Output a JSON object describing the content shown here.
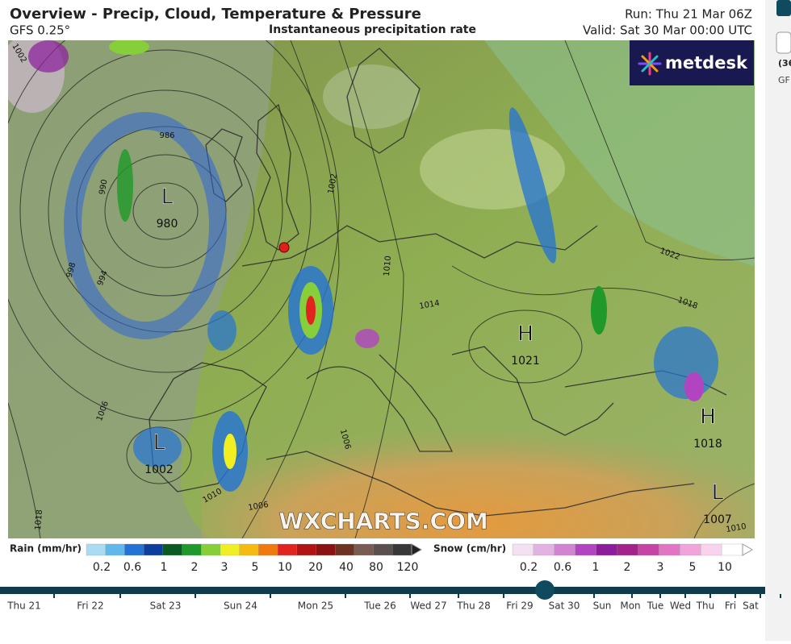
{
  "header": {
    "title": "Overview - Precip, Cloud, Temperature & Pressure",
    "model": "GFS 0.25°",
    "subtitle": "Instantaneous precipitation rate",
    "run": "Run: Thu 21 Mar 06Z",
    "valid": "Valid: Sat 30 Mar 00:00 UTC"
  },
  "logo": "metdesk",
  "watermark": "WXCHARTS.COM",
  "pressure_centers": [
    {
      "label": "L",
      "value": "980"
    },
    {
      "label": "L",
      "value": "1002"
    },
    {
      "label": "H",
      "value": "1021"
    },
    {
      "label": "H",
      "value": "1018"
    },
    {
      "label": "L",
      "value": "1007"
    }
  ],
  "isobar_labels": [
    "1002",
    "986",
    "990",
    "994",
    "998",
    "1002",
    "1006",
    "1010",
    "1014",
    "1018",
    "1022",
    "1006",
    "1010",
    "1006",
    "1018",
    "1010"
  ],
  "rain_legend": {
    "title": "Rain (mm/hr)",
    "labels": [
      "0.2",
      "0.6",
      "1",
      "2",
      "3",
      "5",
      "10",
      "20",
      "40",
      "80",
      "120"
    ],
    "colors": [
      "#a9dcf2",
      "#5fb8ec",
      "#2373d6",
      "#0c3e9e",
      "#0b5a22",
      "#1f9a2a",
      "#86cf3a",
      "#f1ef22",
      "#f6bb10",
      "#f17a10",
      "#e12420",
      "#b21414",
      "#8a1212",
      "#6c3222",
      "#7b5c52",
      "#5b5050",
      "#383838"
    ]
  },
  "snow_legend": {
    "title": "Snow (cm/hr)",
    "labels": [
      "0.2",
      "0.6",
      "1",
      "2",
      "3",
      "5",
      "10"
    ],
    "colors": [
      "#f3e1f1",
      "#e2b3e2",
      "#d283d2",
      "#b244c2",
      "#8c1c9c",
      "#a3238a",
      "#c544a6",
      "#e274c4",
      "#f1a4da",
      "#f9d3ee",
      "#ffffff"
    ]
  },
  "timeline": {
    "days": [
      "Thu 21",
      "Fri 22",
      "Sat 23",
      "Sun 24",
      "Mon 25",
      "Tue 26",
      "Wed 27",
      "Thu 28",
      "Fri 29",
      "Sat 30",
      "Sun",
      "Mon",
      "Tue",
      "Wed",
      "Thu",
      "Fri",
      "Sat"
    ]
  },
  "side_panel": [
    "(36",
    "GF"
  ]
}
